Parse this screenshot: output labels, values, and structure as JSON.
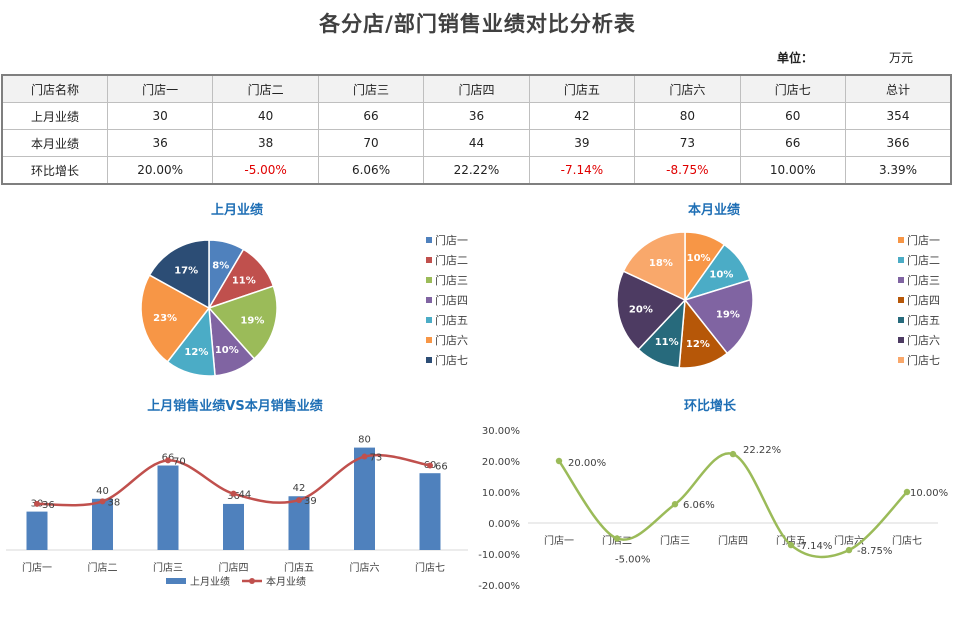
{
  "title": "各分店/部门销售业绩对比分析表",
  "unit": {
    "label": "单位：",
    "value": "万元"
  },
  "table": {
    "headers": [
      "门店名称",
      "门店一",
      "门店二",
      "门店三",
      "门店四",
      "门店五",
      "门店六",
      "门店七",
      "总计"
    ],
    "rows": [
      {
        "name": "上月业绩",
        "cells": [
          "30",
          "40",
          "66",
          "36",
          "42",
          "80",
          "60",
          "354"
        ]
      },
      {
        "name": "本月业绩",
        "cells": [
          "36",
          "38",
          "70",
          "44",
          "39",
          "73",
          "66",
          "366"
        ]
      },
      {
        "name": "环比增长",
        "cells": [
          "20.00%",
          "-5.00%",
          "6.06%",
          "22.22%",
          "-7.14%",
          "-8.75%",
          "10.00%",
          "3.39%"
        ]
      }
    ]
  },
  "colors": {
    "pie1": [
      "#4f81bd",
      "#c0504d",
      "#9bbb59",
      "#8064a2",
      "#4bacc6",
      "#f79646",
      "#2c4d75"
    ],
    "pie2": [
      "#f79646",
      "#4bacc6",
      "#8064a2",
      "#b65708",
      "#276a7c",
      "#4d3b62",
      "#f9a86b"
    ],
    "bar": "#4f81bd",
    "line": "#c0504d",
    "growth": "#9bbb59",
    "title": "#1f6fb5",
    "negative": "#e00000"
  },
  "chart_data": [
    {
      "type": "pie",
      "title": "上月业绩",
      "categories": [
        "门店一",
        "门店二",
        "门店三",
        "门店四",
        "门店五",
        "门店六",
        "门店七"
      ],
      "values": [
        30,
        40,
        66,
        36,
        42,
        80,
        60
      ],
      "data_labels": [
        "8%",
        "11%",
        "19%",
        "10%",
        "12%",
        "23%",
        "17%"
      ],
      "legend": "right"
    },
    {
      "type": "pie",
      "title": "本月业绩",
      "categories": [
        "门店一",
        "门店二",
        "门店三",
        "门店四",
        "门店五",
        "门店六",
        "门店七"
      ],
      "values": [
        36,
        38,
        70,
        44,
        39,
        73,
        66
      ],
      "data_labels": [
        "10%",
        "10%",
        "19%",
        "12%",
        "11%",
        "20%",
        "18%"
      ],
      "legend": "right"
    },
    {
      "type": "bar",
      "title": "上月销售业绩VS本月销售业绩",
      "categories": [
        "门店一",
        "门店二",
        "门店三",
        "门店四",
        "门店五",
        "门店六",
        "门店七"
      ],
      "series": [
        {
          "name": "上月业绩",
          "type": "bar",
          "values": [
            30,
            40,
            66,
            36,
            42,
            80,
            60
          ]
        },
        {
          "name": "本月业绩",
          "type": "line",
          "values": [
            36,
            38,
            70,
            44,
            39,
            73,
            66
          ]
        }
      ],
      "ylim": [
        0,
        85
      ],
      "legend": "bottom"
    },
    {
      "type": "line",
      "title": "环比增长",
      "categories": [
        "门店一",
        "门店二",
        "门店三",
        "门店四",
        "门店五",
        "门店六",
        "门店七"
      ],
      "values": [
        20.0,
        -5.0,
        6.06,
        22.22,
        -7.14,
        -8.75,
        10.0
      ],
      "data_labels": [
        "20.00%",
        "-5.00%",
        "6.06%",
        "22.22%",
        "-7.14%",
        "-8.75%",
        "10.00%"
      ],
      "yticks": [
        "30.00%",
        "20.00%",
        "10.00%",
        "0.00%",
        "-10.00%",
        "-20.00%"
      ],
      "ylim": [
        -20,
        30
      ]
    }
  ]
}
